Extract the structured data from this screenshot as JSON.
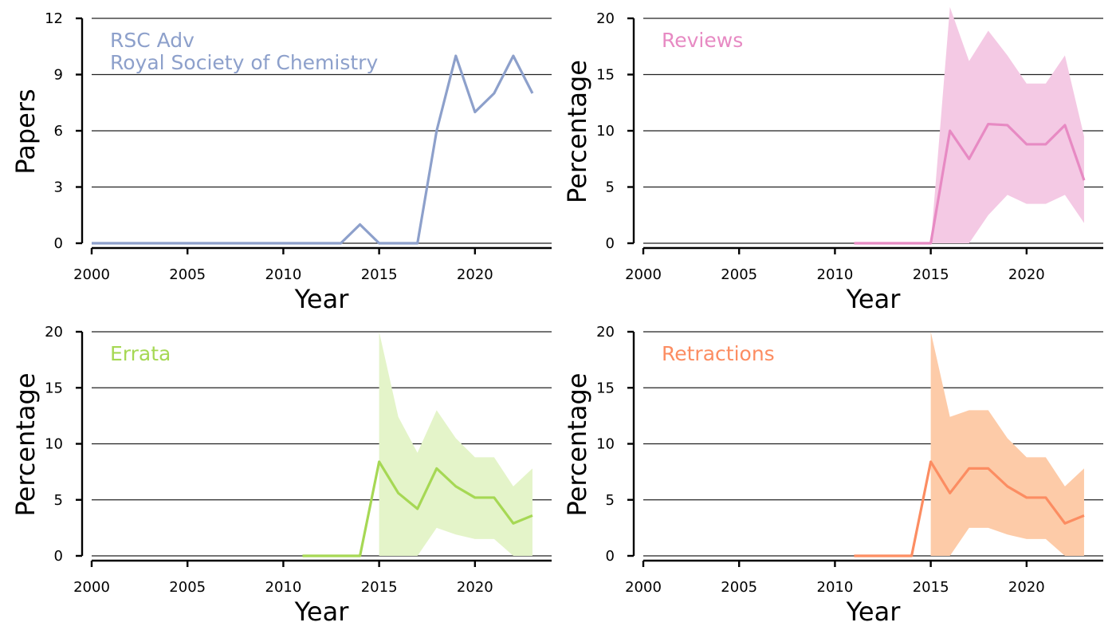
{
  "chart_data": [
    {
      "type": "line",
      "xlabel": "Year",
      "ylabel": "Papers",
      "xlim": [
        1999.5,
        2024
      ],
      "ylim": [
        0,
        12
      ],
      "xticks": [
        2000,
        2005,
        2010,
        2015,
        2020
      ],
      "yticks": [
        0,
        3,
        6,
        9,
        12
      ],
      "grid": "horizontal",
      "color": "#8da0cb",
      "annotation": [
        "RSC Adv",
        "Royal Society of Chemistry"
      ],
      "series": [
        {
          "x": [
            2000,
            2001,
            2002,
            2003,
            2004,
            2005,
            2006,
            2007,
            2008,
            2009,
            2010,
            2011,
            2012,
            2013,
            2014,
            2015,
            2016,
            2017,
            2018,
            2019,
            2020,
            2021,
            2022,
            2023
          ],
          "values": [
            0,
            0,
            0,
            0,
            0,
            0,
            0,
            0,
            0,
            0,
            0,
            0,
            0,
            0,
            1,
            0,
            0,
            0,
            6,
            10,
            7,
            8,
            10,
            8
          ]
        }
      ]
    },
    {
      "type": "area",
      "xlabel": "Year",
      "ylabel": "Percentage",
      "xlim": [
        1999.5,
        2024
      ],
      "ylim": [
        0,
        20
      ],
      "xticks": [
        2000,
        2005,
        2010,
        2015,
        2020
      ],
      "yticks": [
        0,
        5,
        10,
        15,
        20
      ],
      "grid": "horizontal",
      "color": "#e78ac3",
      "band_color": "#f4c9e4",
      "annotation": [
        "Reviews"
      ],
      "series": [
        {
          "x": [
            2011,
            2012,
            2013,
            2014,
            2015,
            2016,
            2017,
            2018,
            2019,
            2020,
            2021,
            2022,
            2023
          ],
          "values": [
            0,
            0,
            0,
            0,
            0,
            10,
            7.5,
            10.6,
            10.5,
            8.8,
            8.8,
            10.5,
            5.6
          ]
        }
      ],
      "band": {
        "x": [
          2015,
          2016,
          2017,
          2018,
          2019,
          2020,
          2021,
          2022,
          2023
        ],
        "lower": [
          0,
          0,
          0,
          2.5,
          4.3,
          3.5,
          3.5,
          4.3,
          1.8
        ],
        "upper": [
          0,
          21,
          16.2,
          18.9,
          16.7,
          14.2,
          14.2,
          16.7,
          9.5
        ]
      }
    },
    {
      "type": "area",
      "xlabel": "Year",
      "ylabel": "Percentage",
      "xlim": [
        1999.5,
        2024
      ],
      "ylim": [
        0,
        20
      ],
      "xticks": [
        2000,
        2005,
        2010,
        2015,
        2020
      ],
      "yticks": [
        0,
        5,
        10,
        15,
        20
      ],
      "grid": "horizontal",
      "color": "#a6d854",
      "band_color": "#e4f4c9",
      "annotation": [
        "Errata"
      ],
      "series": [
        {
          "x": [
            2011,
            2012,
            2013,
            2014,
            2015,
            2016,
            2017,
            2018,
            2019,
            2020,
            2021,
            2022,
            2023
          ],
          "values": [
            0,
            0,
            0,
            0,
            8.4,
            5.6,
            4.2,
            7.8,
            6.2,
            5.2,
            5.2,
            2.9,
            3.6
          ]
        }
      ],
      "band": {
        "x": [
          2015,
          2016,
          2017,
          2018,
          2019,
          2020,
          2021,
          2022,
          2023
        ],
        "lower": [
          0,
          0,
          0,
          2.5,
          1.9,
          1.5,
          1.5,
          0,
          0
        ],
        "upper": [
          20,
          12.4,
          9.2,
          13,
          10.5,
          8.8,
          8.8,
          6.2,
          7.8
        ]
      }
    },
    {
      "type": "area",
      "xlabel": "Year",
      "ylabel": "Percentage",
      "xlim": [
        1999.5,
        2024
      ],
      "ylim": [
        0,
        20
      ],
      "xticks": [
        2000,
        2005,
        2010,
        2015,
        2020
      ],
      "yticks": [
        0,
        5,
        10,
        15,
        20
      ],
      "grid": "horizontal",
      "color": "#fc8d62",
      "band_color": "#fdcba8",
      "annotation": [
        "Retractions"
      ],
      "series": [
        {
          "x": [
            2011,
            2012,
            2013,
            2014,
            2015,
            2016,
            2017,
            2018,
            2019,
            2020,
            2021,
            2022,
            2023
          ],
          "values": [
            0,
            0,
            0,
            0,
            8.4,
            5.6,
            7.8,
            7.8,
            6.2,
            5.2,
            5.2,
            2.9,
            3.6
          ]
        }
      ],
      "band": {
        "x": [
          2015,
          2016,
          2017,
          2018,
          2019,
          2020,
          2021,
          2022,
          2023
        ],
        "lower": [
          0,
          0,
          2.5,
          2.5,
          1.9,
          1.5,
          1.5,
          0,
          0
        ],
        "upper": [
          20,
          12.4,
          13,
          13,
          10.5,
          8.8,
          8.8,
          6.2,
          7.8
        ]
      }
    }
  ]
}
